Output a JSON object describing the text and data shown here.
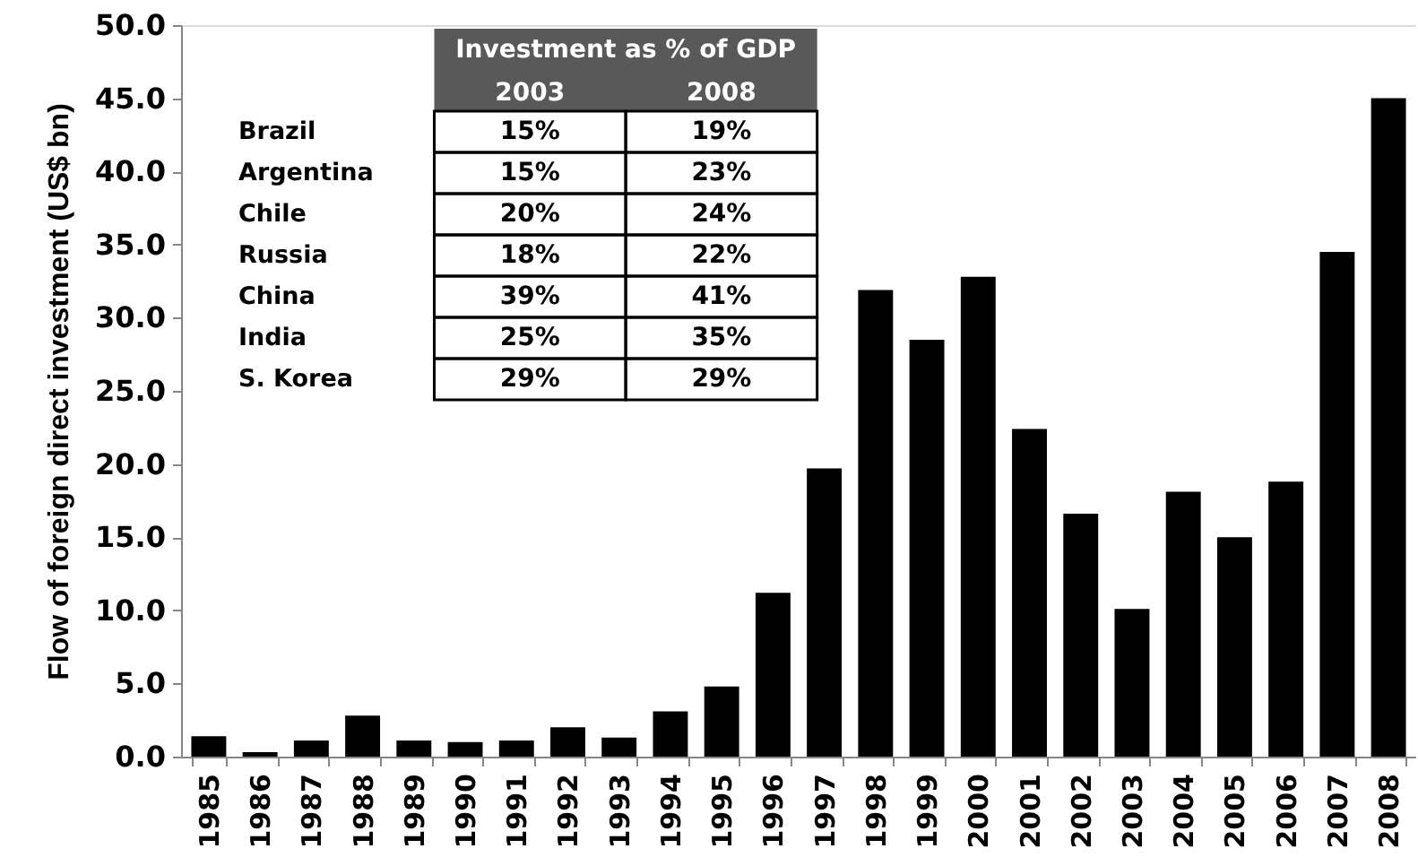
{
  "chart_data": [
    {
      "type": "bar",
      "ylabel": "Flow of foreign direct investment (US$ bn)",
      "categories": [
        "1985",
        "1986",
        "1987",
        "1988",
        "1989",
        "1990",
        "1991",
        "1992",
        "1993",
        "1994",
        "1995",
        "1996",
        "1997",
        "1998",
        "1999",
        "2000",
        "2001",
        "2002",
        "2003",
        "2004",
        "2005",
        "2006",
        "2007",
        "2008"
      ],
      "values": [
        1.4,
        0.3,
        1.1,
        2.8,
        1.1,
        1.0,
        1.1,
        2.0,
        1.3,
        3.1,
        4.8,
        11.2,
        19.7,
        31.9,
        28.5,
        32.8,
        22.4,
        16.6,
        10.1,
        18.1,
        15.0,
        18.8,
        34.5,
        45.0
      ],
      "color": "#000000",
      "ylim": [
        0,
        50
      ],
      "yticks": [
        {
          "value": 0,
          "label": "0.0"
        },
        {
          "value": 5,
          "label": "5.0"
        },
        {
          "value": 10,
          "label": "10.0"
        },
        {
          "value": 15,
          "label": "15.0"
        },
        {
          "value": 20,
          "label": "20.0"
        },
        {
          "value": 25,
          "label": "25.0"
        },
        {
          "value": 30,
          "label": "30.0"
        },
        {
          "value": 35,
          "label": "35.0"
        },
        {
          "value": 40,
          "label": "40.0"
        },
        {
          "value": 45,
          "label": "45.0"
        },
        {
          "value": 50,
          "label": "50.0"
        }
      ]
    },
    {
      "type": "other",
      "title": "Investment as % of GDP",
      "categories": [
        "2003",
        "2008"
      ],
      "y_categories": [
        "Brazil",
        "Argentina",
        "Chile",
        "Russia",
        "China",
        "India",
        "S. Korea"
      ],
      "cell_labels": [
        [
          "15%",
          "19%"
        ],
        [
          "15%",
          "23%"
        ],
        [
          "20%",
          "24%"
        ],
        [
          "18%",
          "22%"
        ],
        [
          "39%",
          "41%"
        ],
        [
          "25%",
          "35%"
        ],
        [
          "29%",
          "29%"
        ]
      ]
    }
  ]
}
